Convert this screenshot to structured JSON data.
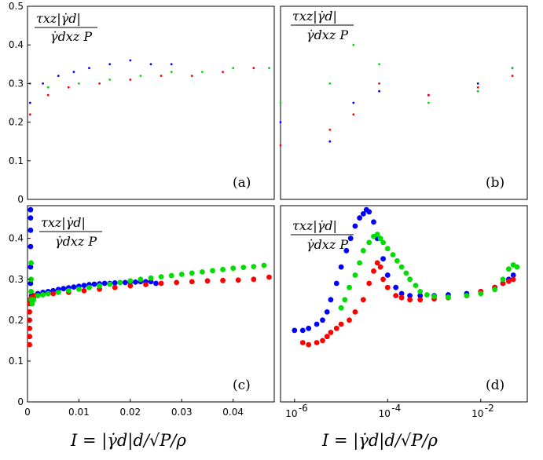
{
  "chart_data": [
    {
      "panel": "a",
      "type": "scatter",
      "label": "(a)",
      "x_scale": "linear",
      "xlim": [
        0,
        0.048
      ],
      "ylim": [
        0,
        0.5
      ],
      "yticks": [
        "0",
        "0.1",
        "0.2",
        "0.3",
        "0.4",
        "0.5"
      ],
      "xticks": [],
      "ylabel": {
        "num": "τxz|γ̇d|",
        "den": "γ̇dxz P"
      },
      "series": [
        {
          "name": "blue",
          "color": "#0000ff",
          "x": [
            0.0005,
            0.003,
            0.006,
            0.009,
            0.012,
            0.016,
            0.02,
            0.024,
            0.028
          ],
          "y": [
            0.25,
            0.3,
            0.32,
            0.33,
            0.34,
            0.35,
            0.36,
            0.35,
            0.35
          ]
        },
        {
          "name": "red",
          "color": "#ff0000",
          "x": [
            0.0005,
            0.004,
            0.008,
            0.014,
            0.02,
            0.026,
            0.032,
            0.038,
            0.044
          ],
          "y": [
            0.22,
            0.27,
            0.29,
            0.3,
            0.31,
            0.32,
            0.32,
            0.33,
            0.34
          ]
        },
        {
          "name": "green",
          "color": "#00dd00",
          "x": [
            0.0005,
            0.004,
            0.01,
            0.016,
            0.022,
            0.028,
            0.034,
            0.04,
            0.047
          ],
          "y": [
            0.3,
            0.29,
            0.3,
            0.31,
            0.32,
            0.33,
            0.33,
            0.34,
            0.34
          ]
        }
      ]
    },
    {
      "panel": "b",
      "type": "scatter",
      "label": "(b)",
      "x_scale": "log",
      "xlim": [
        1e-06,
        0.1
      ],
      "ylim": [
        0,
        0.5
      ],
      "yticks": [],
      "xticks": [],
      "ylabel": {
        "num": "τxz|γ̇d|",
        "den": "γ̇dxz P"
      },
      "series": [
        {
          "name": "blue",
          "color": "#0000ff",
          "x": [
            1e-06,
            1e-05,
            3e-05,
            0.0001,
            0.001,
            0.01,
            0.05
          ],
          "y": [
            0.2,
            0.15,
            0.25,
            0.28,
            0.27,
            0.3,
            0.34
          ]
        },
        {
          "name": "red",
          "color": "#ff0000",
          "x": [
            1e-06,
            1e-05,
            3e-05,
            0.0001,
            0.001,
            0.01,
            0.05
          ],
          "y": [
            0.14,
            0.18,
            0.22,
            0.3,
            0.27,
            0.29,
            0.32
          ]
        },
        {
          "name": "green",
          "color": "#00dd00",
          "x": [
            1e-06,
            1e-05,
            3e-05,
            0.0001,
            0.001,
            0.01,
            0.05
          ],
          "y": [
            0.25,
            0.3,
            0.4,
            0.35,
            0.25,
            0.28,
            0.34
          ]
        }
      ]
    },
    {
      "panel": "c",
      "type": "scatter",
      "label": "(c)",
      "x_scale": "linear",
      "xlim": [
        0,
        0.048
      ],
      "ylim": [
        0,
        0.48
      ],
      "yticks": [
        "0",
        "0.1",
        "0.2",
        "0.3",
        "0.4"
      ],
      "xticks": [
        "0",
        "0.01",
        "0.02",
        "0.03",
        "0.04"
      ],
      "ylabel": {
        "num": "τxz|γ̇d|",
        "den": "γ̇dxz P"
      },
      "series": [
        {
          "name": "blue",
          "color": "#0000ff",
          "x": [
            0.0006,
            0.0006,
            0.0006,
            0.0006,
            0.0006,
            0.0006,
            0.0008,
            0.0012,
            0.002,
            0.003,
            0.004,
            0.005,
            0.006,
            0.007,
            0.008,
            0.009,
            0.01,
            0.011,
            0.012,
            0.013,
            0.014,
            0.015,
            0.016,
            0.017,
            0.018,
            0.019,
            0.02,
            0.021,
            0.022,
            0.023,
            0.024,
            0.025
          ],
          "y": [
            0.47,
            0.45,
            0.42,
            0.38,
            0.33,
            0.29,
            0.26,
            0.26,
            0.265,
            0.268,
            0.27,
            0.272,
            0.275,
            0.277,
            0.279,
            0.281,
            0.283,
            0.285,
            0.287,
            0.288,
            0.289,
            0.29,
            0.29,
            0.291,
            0.292,
            0.292,
            0.293,
            0.293,
            0.294,
            0.294,
            0.294,
            0.29
          ]
        },
        {
          "name": "red",
          "color": "#ff0000",
          "x": [
            0.0004,
            0.0004,
            0.0004,
            0.0004,
            0.0004,
            0.0004,
            0.0005,
            0.0008,
            0.0015,
            0.003,
            0.005,
            0.008,
            0.011,
            0.014,
            0.017,
            0.02,
            0.023,
            0.026,
            0.029,
            0.032,
            0.035,
            0.038,
            0.041,
            0.044,
            0.047
          ],
          "y": [
            0.14,
            0.16,
            0.18,
            0.2,
            0.22,
            0.24,
            0.25,
            0.255,
            0.26,
            0.262,
            0.265,
            0.268,
            0.272,
            0.276,
            0.28,
            0.284,
            0.287,
            0.29,
            0.292,
            0.294,
            0.296,
            0.297,
            0.298,
            0.3,
            0.305
          ]
        },
        {
          "name": "green",
          "color": "#00dd00",
          "x": [
            0.0007,
            0.0007,
            0.0007,
            0.0007,
            0.0009,
            0.0012,
            0.002,
            0.003,
            0.004,
            0.006,
            0.008,
            0.01,
            0.012,
            0.014,
            0.016,
            0.018,
            0.02,
            0.022,
            0.024,
            0.026,
            0.028,
            0.03,
            0.032,
            0.034,
            0.036,
            0.038,
            0.04,
            0.042,
            0.044,
            0.046
          ],
          "y": [
            0.34,
            0.3,
            0.27,
            0.25,
            0.24,
            0.25,
            0.26,
            0.262,
            0.265,
            0.268,
            0.272,
            0.276,
            0.28,
            0.284,
            0.288,
            0.292,
            0.296,
            0.3,
            0.303,
            0.306,
            0.309,
            0.312,
            0.315,
            0.318,
            0.321,
            0.324,
            0.327,
            0.329,
            0.331,
            0.334
          ]
        }
      ]
    },
    {
      "panel": "d",
      "type": "scatter",
      "label": "(d)",
      "x_scale": "log",
      "xlim": [
        5e-07,
        0.1
      ],
      "ylim": [
        0,
        0.48
      ],
      "yticks": [],
      "xticks": [
        {
          "base": "10",
          "exp": "-6",
          "value": 1e-06
        },
        {
          "base": "10",
          "exp": "-4",
          "value": 0.0001
        },
        {
          "base": "10",
          "exp": "-2",
          "value": 0.01
        }
      ],
      "ylabel": {
        "num": "τxz|γ̇d|",
        "den": "γ̇dxz P"
      },
      "series": [
        {
          "name": "blue",
          "color": "#0000ff",
          "x": [
            1e-06,
            1.5e-06,
            2e-06,
            3e-06,
            4e-06,
            5e-06,
            6e-06,
            8e-06,
            1e-05,
            1.3e-05,
            1.6e-05,
            2e-05,
            2.5e-05,
            3e-05,
            3.5e-05,
            4e-05,
            5e-05,
            6e-05,
            8e-05,
            0.0001,
            0.00015,
            0.0002,
            0.0003,
            0.0005,
            0.001,
            0.002,
            0.005,
            0.01,
            0.02,
            0.03,
            0.04,
            0.05
          ],
          "y": [
            0.175,
            0.175,
            0.18,
            0.19,
            0.2,
            0.22,
            0.25,
            0.29,
            0.33,
            0.37,
            0.4,
            0.43,
            0.45,
            0.46,
            0.47,
            0.465,
            0.44,
            0.4,
            0.35,
            0.31,
            0.28,
            0.265,
            0.26,
            0.26,
            0.26,
            0.262,
            0.265,
            0.27,
            0.28,
            0.29,
            0.3,
            0.31
          ]
        },
        {
          "name": "red",
          "color": "#ff0000",
          "x": [
            1.5e-06,
            2e-06,
            3e-06,
            4e-06,
            5e-06,
            6e-06,
            8e-06,
            1e-05,
            1.5e-05,
            2e-05,
            3e-05,
            4e-05,
            5e-05,
            6e-05,
            7e-05,
            8e-05,
            0.0001,
            0.00015,
            0.0002,
            0.0003,
            0.0005,
            0.001,
            0.002,
            0.005,
            0.01,
            0.02,
            0.03,
            0.04,
            0.05
          ],
          "y": [
            0.145,
            0.14,
            0.145,
            0.15,
            0.16,
            0.17,
            0.18,
            0.19,
            0.2,
            0.22,
            0.25,
            0.29,
            0.32,
            0.34,
            0.33,
            0.3,
            0.28,
            0.26,
            0.255,
            0.25,
            0.25,
            0.252,
            0.255,
            0.26,
            0.27,
            0.28,
            0.29,
            0.295,
            0.3
          ]
        },
        {
          "name": "green",
          "color": "#00dd00",
          "x": [
            1e-05,
            1.2e-05,
            1.5e-05,
            2e-05,
            2.5e-05,
            3e-05,
            4e-05,
            5e-05,
            6e-05,
            7e-05,
            8e-05,
            0.0001,
            0.00013,
            0.00016,
            0.0002,
            0.00025,
            0.0003,
            0.0004,
            0.0005,
            0.0007,
            0.001,
            0.002,
            0.005,
            0.01,
            0.02,
            0.03,
            0.04,
            0.05,
            0.06
          ],
          "y": [
            0.23,
            0.25,
            0.28,
            0.31,
            0.34,
            0.37,
            0.39,
            0.405,
            0.41,
            0.4,
            0.39,
            0.375,
            0.36,
            0.345,
            0.33,
            0.315,
            0.3,
            0.285,
            0.27,
            0.262,
            0.258,
            0.256,
            0.26,
            0.265,
            0.275,
            0.3,
            0.325,
            0.335,
            0.33
          ]
        }
      ]
    }
  ],
  "xlabel_bottom": "I = |γ̇d|d/√P/ρ"
}
